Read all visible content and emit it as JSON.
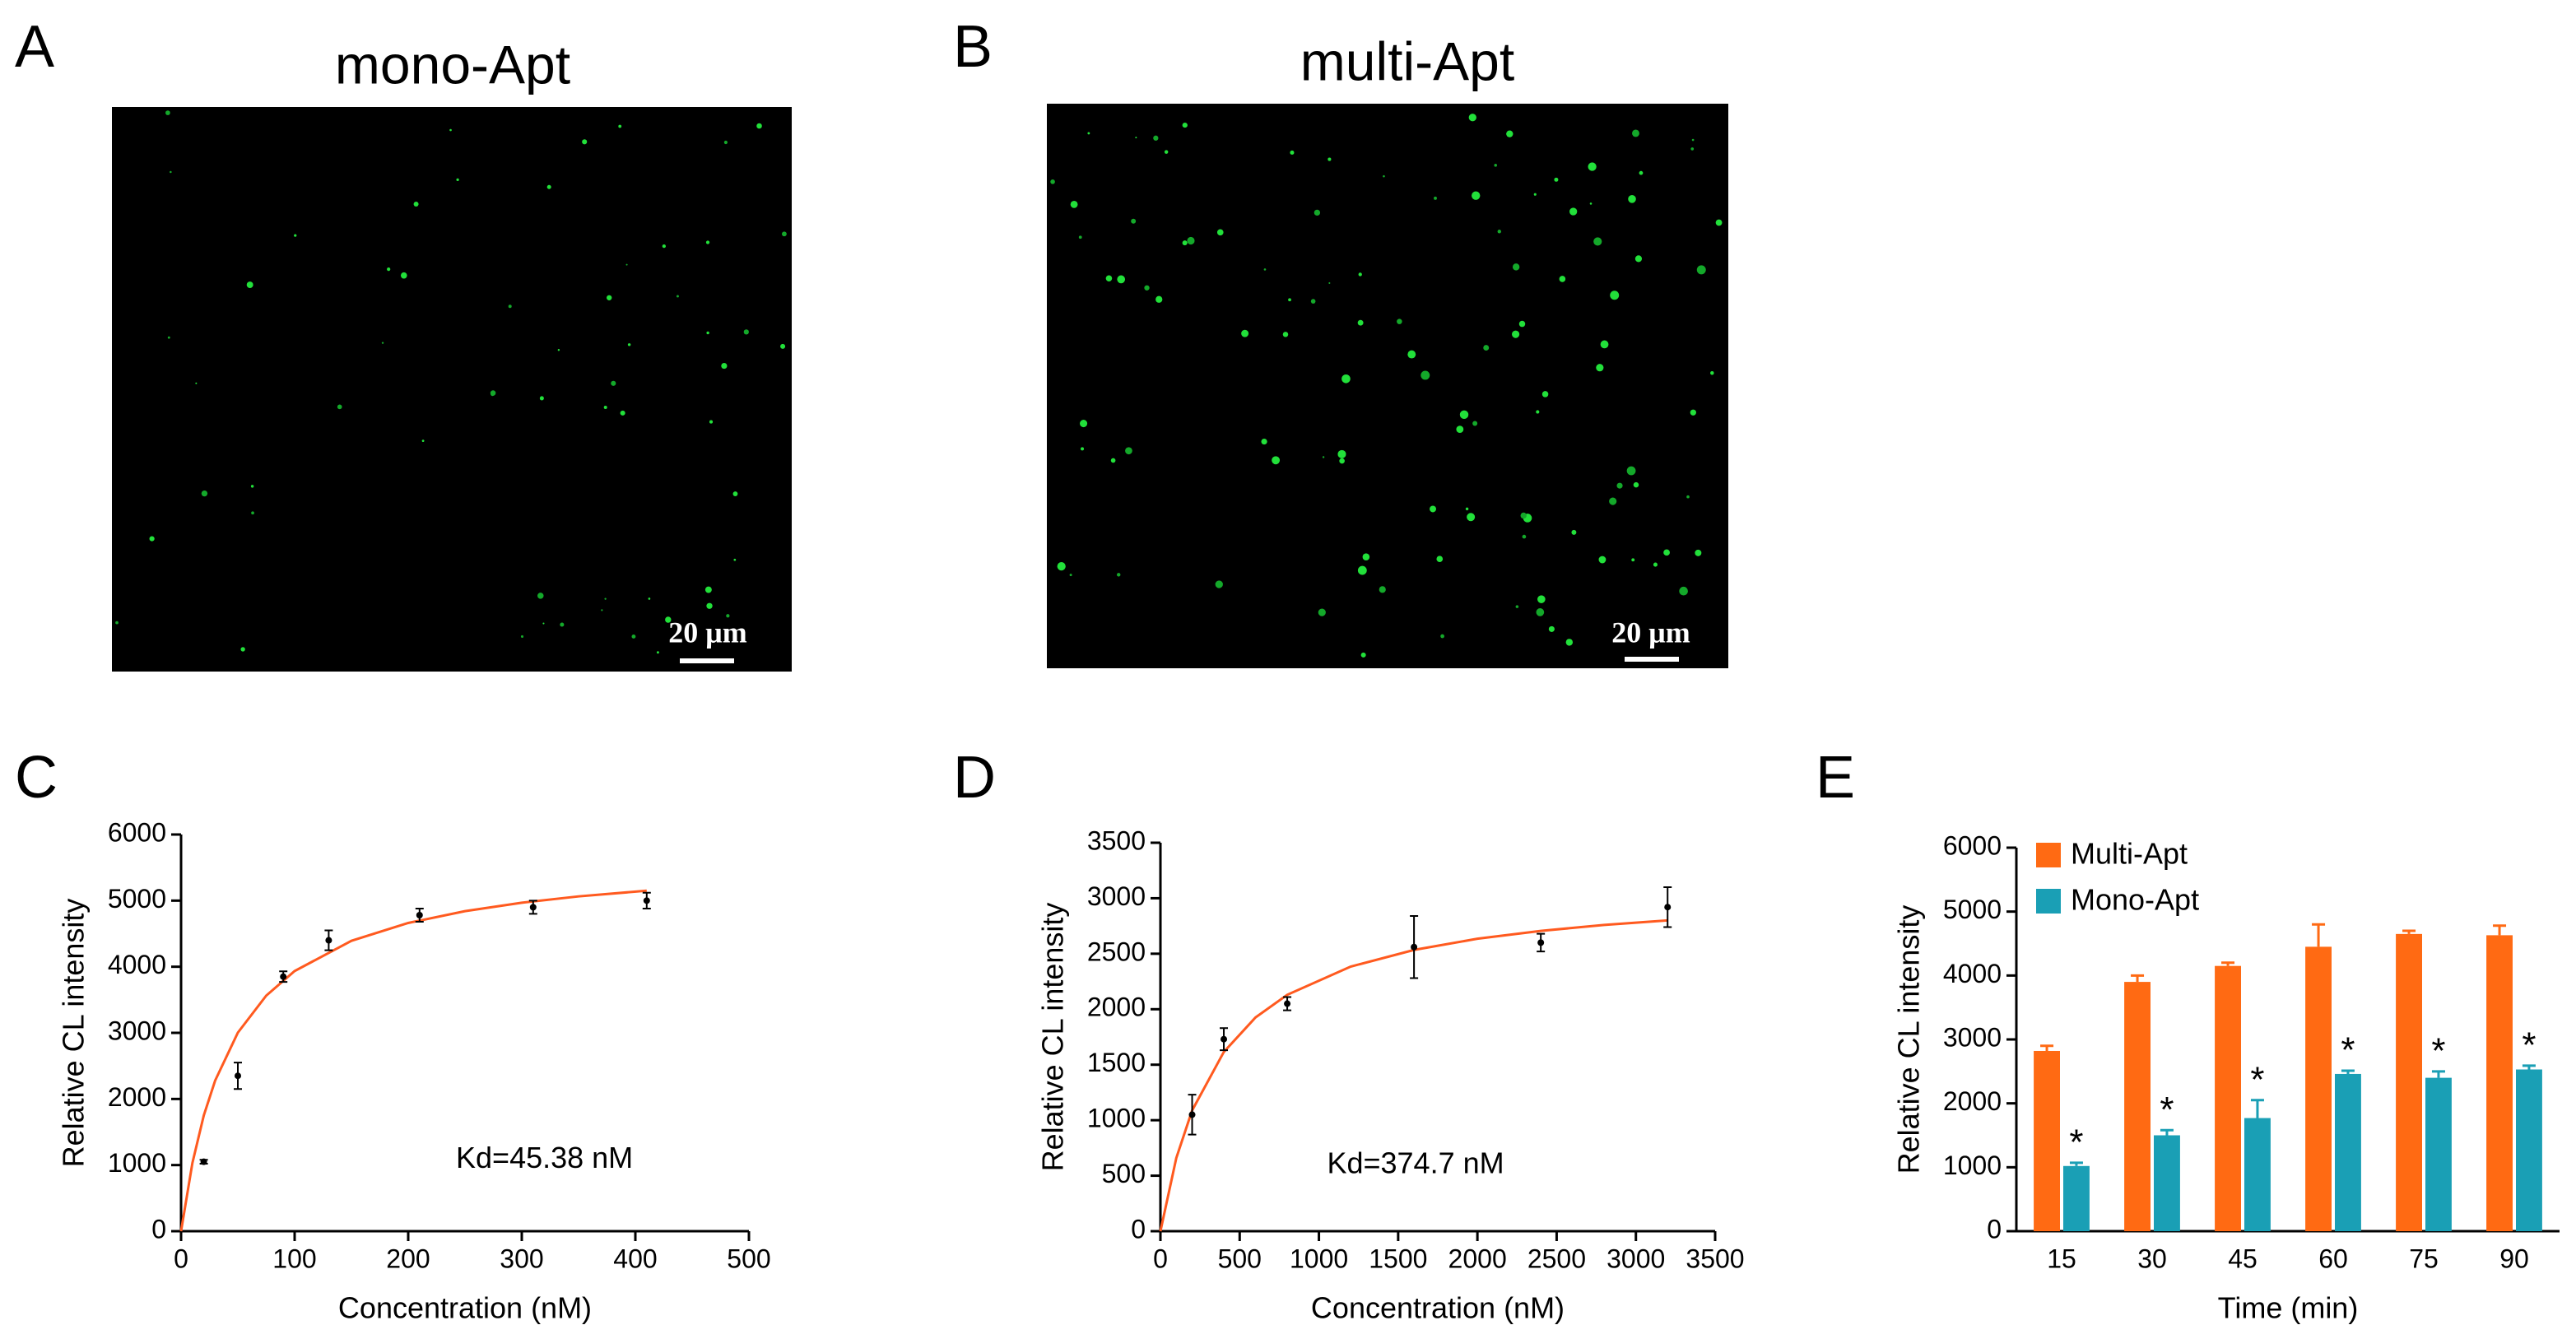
{
  "panels": [
    {
      "label": "A",
      "title": "mono-Apt",
      "scale_bar": "20 μm"
    },
    {
      "label": "B",
      "title": "multi-Apt",
      "scale_bar": "20 μm"
    }
  ],
  "chart_data": [
    {
      "type": "scatter",
      "label": "C",
      "x_label": "Concentration (nM)",
      "y_label": "Relative CL intensity",
      "annotation": "Kd=45.38 nM",
      "xlim": [
        0,
        500
      ],
      "xticks": [
        0,
        100,
        200,
        300,
        400,
        500
      ],
      "ylim": [
        0,
        6000
      ],
      "yticks": [
        0,
        1000,
        2000,
        3000,
        4000,
        5000,
        6000
      ],
      "points": {
        "color": "#000000",
        "x": [
          20,
          50,
          90,
          130,
          210,
          310,
          410
        ],
        "values": [
          1050,
          2350,
          3850,
          4400,
          4780,
          4900,
          5000
        ],
        "errors": [
          30,
          200,
          80,
          150,
          100,
          100,
          120
        ]
      },
      "fit": {
        "color": "#ff5a1f",
        "x": [
          0,
          10,
          20,
          30,
          50,
          75,
          100,
          150,
          200,
          250,
          300,
          350,
          410
        ],
        "values": [
          0,
          1033,
          1750,
          2278,
          3003,
          3563,
          3935,
          4392,
          4662,
          4841,
          4968,
          5064,
          5150
        ]
      }
    },
    {
      "type": "scatter",
      "label": "D",
      "x_label": "Concentration (nM)",
      "y_label": "Relative CL intensity",
      "annotation": "Kd=374.7 nM",
      "xlim": [
        0,
        3500
      ],
      "xticks": [
        0,
        500,
        1000,
        1500,
        2000,
        2500,
        3000,
        3500
      ],
      "ylim": [
        0,
        3500
      ],
      "yticks": [
        0,
        500,
        1000,
        1500,
        2000,
        2500,
        3000,
        3500
      ],
      "points": {
        "color": "#000000",
        "x": [
          200,
          400,
          800,
          1600,
          2400,
          3200
        ],
        "values": [
          1050,
          1730,
          2050,
          2560,
          2600,
          2920
        ],
        "errors": [
          180,
          100,
          60,
          280,
          80,
          180
        ]
      },
      "fit": {
        "color": "#ff5a1f",
        "x": [
          0,
          100,
          200,
          400,
          600,
          800,
          1200,
          1600,
          2000,
          2400,
          2800,
          3200
        ],
        "values": [
          0,
          659,
          1088,
          1615,
          1926,
          2130,
          2384,
          2534,
          2635,
          2706,
          2759,
          2800
        ]
      }
    },
    {
      "type": "bar",
      "label": "E",
      "x_label": "Time (min)",
      "y_label": "Relative CL intensity",
      "categories": [
        "15",
        "30",
        "45",
        "60",
        "75",
        "90"
      ],
      "ylim": [
        0,
        6000
      ],
      "yticks": [
        0,
        1000,
        2000,
        3000,
        4000,
        5000,
        6000
      ],
      "legend": "top-left",
      "series": [
        {
          "name": "Multi-Apt",
          "color": "#ff6a13",
          "values": [
            2820,
            3900,
            4150,
            4450,
            4650,
            4630
          ],
          "errors": [
            80,
            100,
            50,
            350,
            50,
            150
          ]
        },
        {
          "name": "Mono-Apt",
          "color": "#1a9fb5",
          "values": [
            1020,
            1500,
            1770,
            2460,
            2400,
            2530
          ],
          "errors": [
            50,
            80,
            280,
            50,
            100,
            60
          ],
          "marks": [
            "*",
            "*",
            "*",
            "*",
            "*",
            "*"
          ]
        }
      ]
    }
  ]
}
